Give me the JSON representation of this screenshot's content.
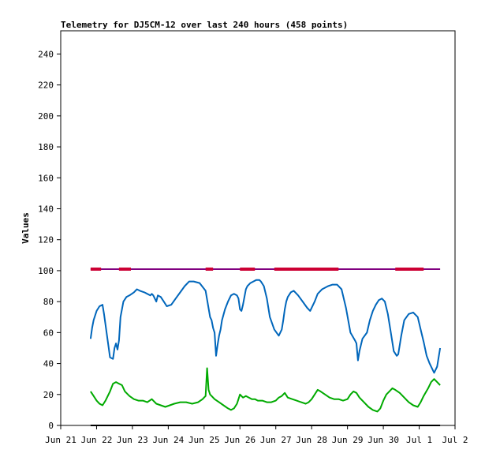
{
  "chart_data": {
    "type": "line",
    "title": "Telemetry for DJ5CM-12 over last 240 hours (458 points)",
    "xlabel": "",
    "ylabel": "Values",
    "ylim": [
      0,
      255
    ],
    "xlim": [
      0,
      264
    ],
    "yticks": [
      0,
      20,
      40,
      60,
      80,
      100,
      120,
      140,
      160,
      180,
      200,
      220,
      240
    ],
    "xticks": [
      {
        "x": 0,
        "label": "Jun 21"
      },
      {
        "x": 24,
        "label": "Jun 22"
      },
      {
        "x": 48,
        "label": "Jun 23"
      },
      {
        "x": 72,
        "label": "Jun 24"
      },
      {
        "x": 96,
        "label": "Jun 25"
      },
      {
        "x": 120,
        "label": "Jun 26"
      },
      {
        "x": 144,
        "label": "Jun 27"
      },
      {
        "x": 168,
        "label": "Jun 28"
      },
      {
        "x": 192,
        "label": "Jun 29"
      },
      {
        "x": 216,
        "label": "Jun 30"
      },
      {
        "x": 240,
        "label": "Jul 1"
      },
      {
        "x": 264,
        "label": "Jul 2"
      }
    ],
    "grid": false,
    "legend": "none",
    "series": [
      {
        "color": "#0066bb",
        "x": [
          20,
          21,
          22,
          24,
          26,
          28,
          29,
          31,
          33,
          35,
          36,
          37,
          38,
          39,
          40,
          42,
          44,
          46,
          49,
          51,
          53,
          56,
          58,
          60,
          61,
          62,
          63,
          64,
          65,
          67,
          69,
          71,
          74,
          77,
          80,
          83,
          86,
          89,
          93,
          97,
          100,
          101,
          102,
          103,
          104,
          105,
          106,
          107,
          108,
          110,
          112,
          114,
          116,
          118,
          119,
          120,
          121,
          122,
          124,
          125,
          127,
          129,
          131,
          133,
          134,
          136,
          138,
          140,
          143,
          146,
          148,
          149,
          150,
          151,
          152,
          154,
          156,
          159,
          162,
          165,
          167,
          170,
          172,
          174,
          175,
          177,
          179,
          182,
          185,
          188,
          191,
          194,
          197,
          198,
          199,
          200,
          201,
          202,
          205,
          207,
          209,
          211,
          213,
          215,
          217,
          219,
          221,
          223,
          225,
          226,
          228,
          230,
          233,
          236,
          239,
          241,
          243,
          245,
          247,
          249,
          250,
          252,
          254
        ],
        "y": [
          56,
          63,
          68,
          74,
          77,
          78,
          72,
          58,
          44,
          43,
          50,
          53,
          49,
          55,
          70,
          80,
          83,
          84,
          86,
          88,
          87,
          86,
          85,
          84,
          85,
          84,
          82,
          80,
          84,
          83,
          80,
          77,
          78,
          82,
          86,
          90,
          93,
          93,
          92,
          87,
          70,
          68,
          63,
          60,
          45,
          52,
          58,
          62,
          68,
          75,
          80,
          84,
          85,
          84,
          82,
          75,
          74,
          78,
          88,
          90,
          92,
          93,
          94,
          94,
          93,
          90,
          82,
          70,
          62,
          58,
          62,
          68,
          75,
          80,
          83,
          86,
          87,
          84,
          80,
          76,
          74,
          80,
          85,
          87,
          88,
          89,
          90,
          91,
          91,
          88,
          76,
          60,
          55,
          53,
          42,
          48,
          52,
          56,
          60,
          68,
          74,
          78,
          81,
          82,
          80,
          72,
          60,
          48,
          45,
          46,
          58,
          68,
          72,
          73,
          70,
          62,
          54,
          45,
          40,
          36,
          34,
          38,
          50
        ]
      },
      {
        "color": "#00aa00",
        "x": [
          20,
          22,
          24,
          26,
          28,
          30,
          33,
          35,
          37,
          39,
          41,
          43,
          46,
          49,
          52,
          55,
          58,
          61,
          64,
          67,
          70,
          73,
          76,
          80,
          84,
          88,
          92,
          95,
          97,
          98,
          99,
          100,
          101,
          103,
          106,
          109,
          112,
          114,
          116,
          118,
          120,
          122,
          124,
          126,
          128,
          130,
          132,
          135,
          138,
          141,
          144,
          146,
          148,
          150,
          152,
          155,
          158,
          161,
          164,
          166,
          168,
          170,
          172,
          174,
          177,
          180,
          183,
          186,
          189,
          192,
          194,
          196,
          198,
          200,
          203,
          206,
          209,
          212,
          214,
          216,
          218,
          220,
          222,
          224,
          227,
          230,
          233,
          236,
          239,
          241,
          243,
          246,
          248,
          250,
          252,
          254
        ],
        "y": [
          22,
          19,
          16,
          14,
          13,
          16,
          22,
          27,
          28,
          27,
          26,
          22,
          19,
          17,
          16,
          16,
          15,
          17,
          14,
          13,
          12,
          13,
          14,
          15,
          15,
          14,
          15,
          17,
          19,
          37,
          23,
          20,
          19,
          17,
          15,
          13,
          11,
          10,
          11,
          14,
          20,
          18,
          19,
          18,
          17,
          17,
          16,
          16,
          15,
          15,
          16,
          18,
          19,
          21,
          18,
          17,
          16,
          15,
          14,
          15,
          17,
          20,
          23,
          22,
          20,
          18,
          17,
          17,
          16,
          17,
          20,
          22,
          21,
          18,
          15,
          12,
          10,
          9,
          11,
          16,
          20,
          22,
          24,
          23,
          21,
          18,
          15,
          13,
          12,
          15,
          19,
          24,
          28,
          30,
          28,
          26
        ]
      },
      {
        "color": "#800080",
        "x": [
          20,
          254
        ],
        "y": [
          101,
          101
        ]
      },
      {
        "color": "#000000",
        "x": [
          20,
          254
        ],
        "y": [
          0,
          0
        ]
      }
    ],
    "markers": [
      {
        "color": "#cc0033",
        "y": 101,
        "ranges": [
          [
            20,
            27
          ],
          [
            39,
            47
          ],
          [
            97,
            102
          ],
          [
            120,
            130
          ],
          [
            143,
            186
          ],
          [
            224,
            243
          ]
        ]
      }
    ]
  }
}
